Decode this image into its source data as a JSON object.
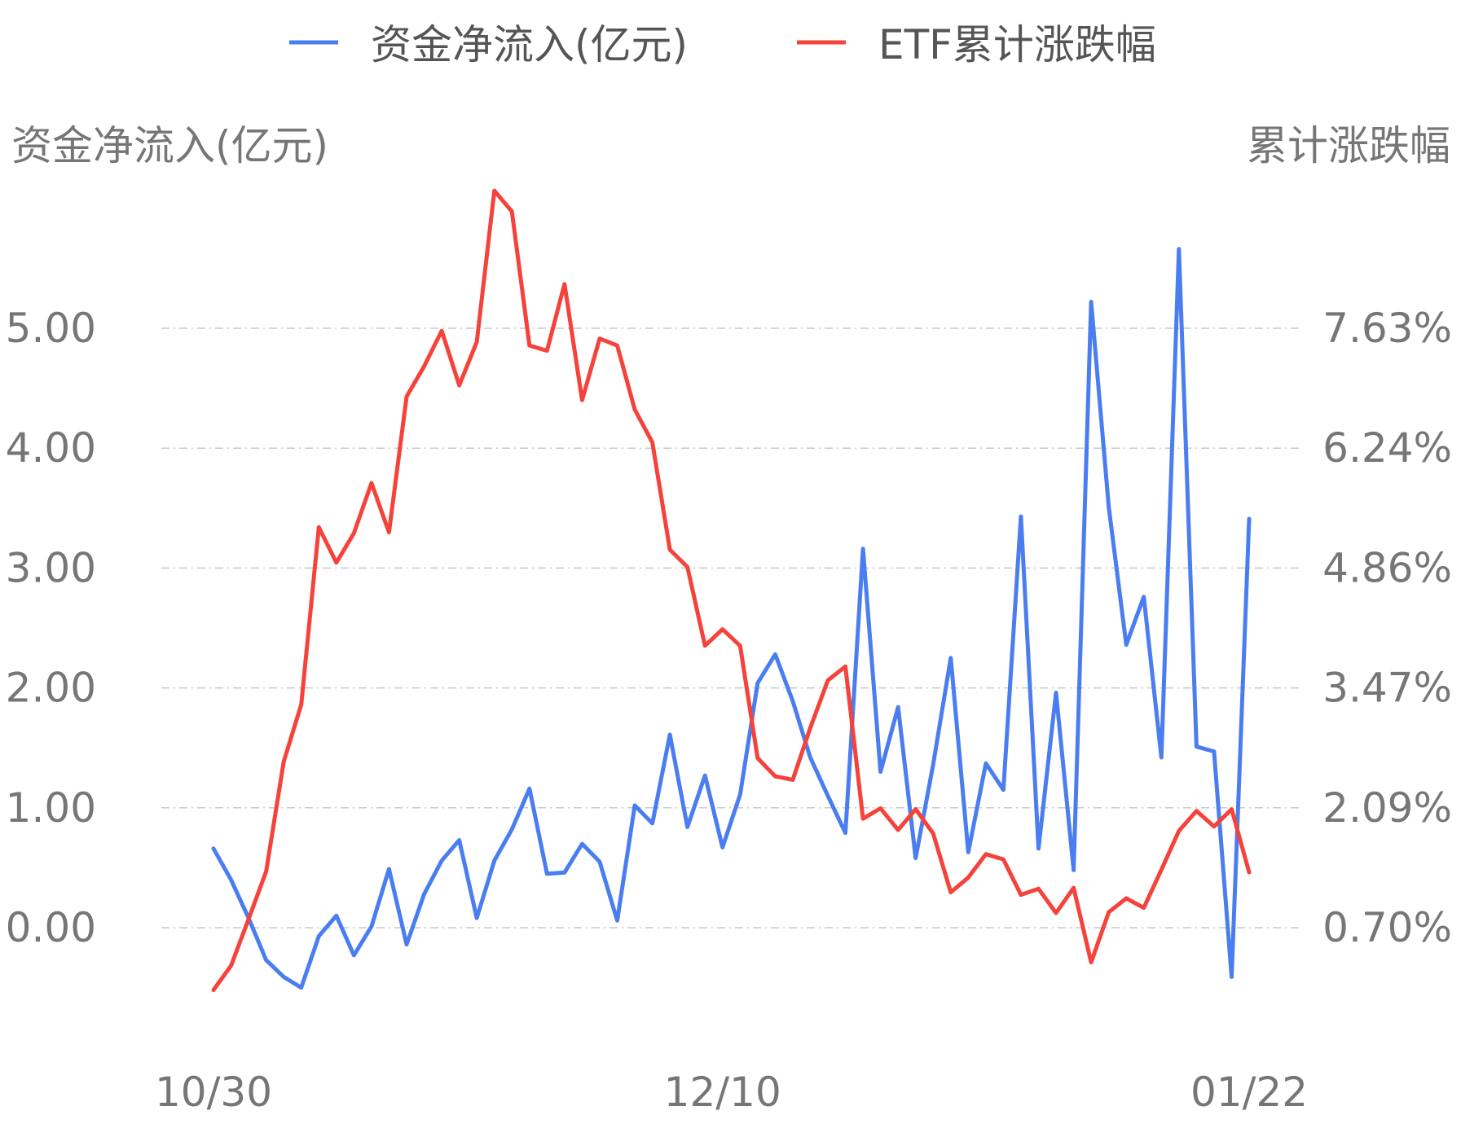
{
  "chart_data": {
    "type": "line",
    "legend": {
      "placement": "top-center",
      "items": [
        {
          "label": "资金净流入(亿元)",
          "color": "#4a7ef0"
        },
        {
          "label": "ETF累计涨跌幅",
          "color": "#f5423a"
        }
      ]
    },
    "ylabel_left": "资金净流入(亿元)",
    "ylabel_right": "累计涨跌幅",
    "y_left_ticks": [
      "5.00",
      "4.00",
      "3.00",
      "2.00",
      "1.00",
      "0.00"
    ],
    "y_right_ticks": [
      "7.63%",
      "6.24%",
      "4.86%",
      "3.47%",
      "2.09%",
      "0.70%"
    ],
    "y_left_range": [
      -1.0,
      5.5
    ],
    "x_tick_labels": [
      "10/30",
      "12/10",
      "01/22"
    ],
    "x_tick_index": [
      0,
      29,
      59
    ],
    "grid": "horizontal dashed",
    "series": [
      {
        "name": "资金净流入(亿元)",
        "axis": "left",
        "color": "#4a7ef0",
        "values": [
          0.66,
          0.4,
          0.08,
          -0.27,
          -0.41,
          -0.5,
          -0.07,
          0.1,
          -0.23,
          0.01,
          0.49,
          -0.14,
          0.28,
          0.56,
          0.73,
          0.08,
          0.56,
          0.82,
          1.16,
          0.45,
          0.46,
          0.7,
          0.55,
          0.06,
          1.02,
          0.87,
          1.61,
          0.84,
          1.27,
          0.67,
          1.11,
          2.04,
          2.28,
          1.89,
          1.42,
          1.1,
          0.79,
          3.16,
          1.3,
          1.84,
          0.58,
          1.36,
          2.25,
          0.63,
          1.37,
          1.15,
          3.43,
          0.66,
          1.96,
          0.48,
          5.22,
          3.51,
          2.36,
          2.76,
          1.42,
          5.66,
          1.51,
          1.47,
          -0.41,
          3.41
        ]
      },
      {
        "name": "ETF累计涨跌幅",
        "axis": "right",
        "color": "#f5423a",
        "values": [
          -0.02,
          0.26,
          0.8,
          1.35,
          2.62,
          3.28,
          5.33,
          4.92,
          5.26,
          5.84,
          5.27,
          6.84,
          7.19,
          7.6,
          6.97,
          7.47,
          9.22,
          8.98,
          7.43,
          7.37,
          8.14,
          6.8,
          7.51,
          7.43,
          6.69,
          6.31,
          5.07,
          4.87,
          3.96,
          4.15,
          3.96,
          2.66,
          2.45,
          2.41,
          3.01,
          3.56,
          3.72,
          1.96,
          2.08,
          1.83,
          2.07,
          1.79,
          1.11,
          1.28,
          1.55,
          1.49,
          1.08,
          1.15,
          0.87,
          1.16,
          0.3,
          0.88,
          1.04,
          0.93,
          1.37,
          1.82,
          2.05,
          1.87,
          2.07,
          1.34
        ]
      }
    ]
  }
}
